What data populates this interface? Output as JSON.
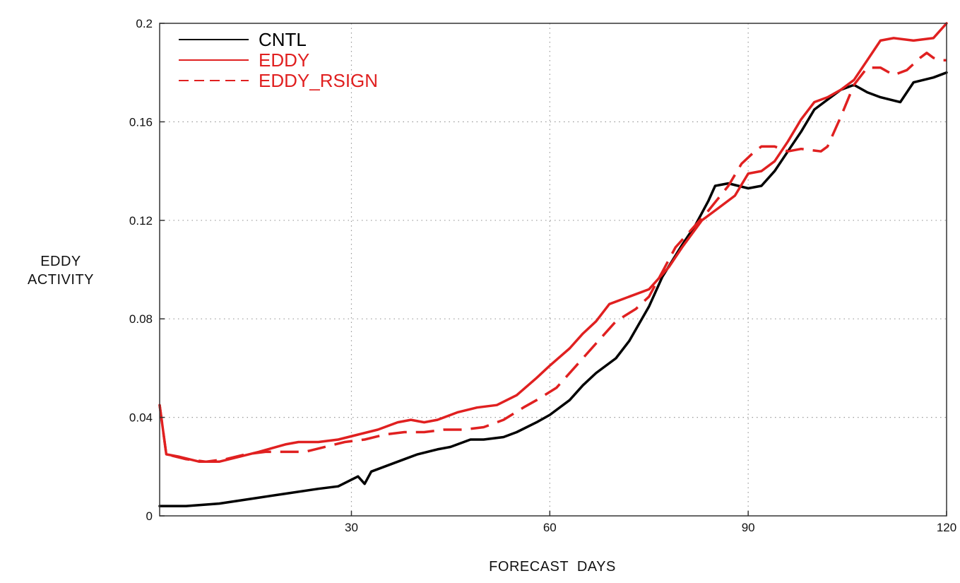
{
  "chart_data": {
    "type": "line",
    "xlabel": "FORECAST  DAYS",
    "ylabel": [
      "EDDY",
      "ACTIVITY"
    ],
    "xlim": [
      1,
      120
    ],
    "ylim": [
      0,
      0.2
    ],
    "xticks": [
      30,
      60,
      90,
      120
    ],
    "xtick_labels": [
      "30",
      "60",
      "90",
      "120"
    ],
    "yticks": [
      0,
      0.04,
      0.08,
      0.12,
      0.16,
      0.2
    ],
    "ytick_labels": [
      "0",
      "0.04",
      "0.08",
      "0.12",
      "0.16",
      "0.2"
    ],
    "grid": true,
    "legend_position": "top-left",
    "series": [
      {
        "name": "CNTL",
        "color": "#000000",
        "style": "solid",
        "points": [
          [
            1,
            0.004
          ],
          [
            5,
            0.004
          ],
          [
            10,
            0.005
          ],
          [
            15,
            0.007
          ],
          [
            20,
            0.009
          ],
          [
            25,
            0.011
          ],
          [
            28,
            0.012
          ],
          [
            31,
            0.016
          ],
          [
            32,
            0.013
          ],
          [
            33,
            0.018
          ],
          [
            35,
            0.02
          ],
          [
            38,
            0.023
          ],
          [
            40,
            0.025
          ],
          [
            43,
            0.027
          ],
          [
            45,
            0.028
          ],
          [
            48,
            0.031
          ],
          [
            50,
            0.031
          ],
          [
            53,
            0.032
          ],
          [
            55,
            0.034
          ],
          [
            58,
            0.038
          ],
          [
            60,
            0.041
          ],
          [
            63,
            0.047
          ],
          [
            65,
            0.053
          ],
          [
            67,
            0.058
          ],
          [
            70,
            0.064
          ],
          [
            72,
            0.071
          ],
          [
            75,
            0.085
          ],
          [
            77,
            0.097
          ],
          [
            80,
            0.11
          ],
          [
            82,
            0.118
          ],
          [
            84,
            0.128
          ],
          [
            85,
            0.134
          ],
          [
            87,
            0.135
          ],
          [
            90,
            0.133
          ],
          [
            92,
            0.134
          ],
          [
            94,
            0.14
          ],
          [
            96,
            0.148
          ],
          [
            98,
            0.156
          ],
          [
            100,
            0.165
          ],
          [
            102,
            0.169
          ],
          [
            104,
            0.173
          ],
          [
            106,
            0.175
          ],
          [
            108,
            0.172
          ],
          [
            110,
            0.17
          ],
          [
            113,
            0.168
          ],
          [
            115,
            0.176
          ],
          [
            118,
            0.178
          ],
          [
            120,
            0.18
          ]
        ]
      },
      {
        "name": "EDDY",
        "color": "#e02020",
        "style": "solid",
        "points": [
          [
            1,
            0.045
          ],
          [
            2,
            0.025
          ],
          [
            4,
            0.024
          ],
          [
            7,
            0.022
          ],
          [
            10,
            0.022
          ],
          [
            13,
            0.024
          ],
          [
            16,
            0.026
          ],
          [
            20,
            0.029
          ],
          [
            22,
            0.03
          ],
          [
            25,
            0.03
          ],
          [
            28,
            0.031
          ],
          [
            31,
            0.033
          ],
          [
            34,
            0.035
          ],
          [
            37,
            0.038
          ],
          [
            39,
            0.039
          ],
          [
            41,
            0.038
          ],
          [
            43,
            0.039
          ],
          [
            46,
            0.042
          ],
          [
            49,
            0.044
          ],
          [
            52,
            0.045
          ],
          [
            55,
            0.049
          ],
          [
            58,
            0.056
          ],
          [
            60,
            0.061
          ],
          [
            63,
            0.068
          ],
          [
            65,
            0.074
          ],
          [
            67,
            0.079
          ],
          [
            69,
            0.086
          ],
          [
            72,
            0.089
          ],
          [
            75,
            0.092
          ],
          [
            78,
            0.101
          ],
          [
            80,
            0.109
          ],
          [
            83,
            0.12
          ],
          [
            85,
            0.124
          ],
          [
            88,
            0.13
          ],
          [
            90,
            0.139
          ],
          [
            92,
            0.14
          ],
          [
            94,
            0.144
          ],
          [
            96,
            0.152
          ],
          [
            98,
            0.161
          ],
          [
            100,
            0.168
          ],
          [
            102,
            0.17
          ],
          [
            104,
            0.173
          ],
          [
            106,
            0.177
          ],
          [
            108,
            0.185
          ],
          [
            110,
            0.193
          ],
          [
            112,
            0.194
          ],
          [
            115,
            0.193
          ],
          [
            118,
            0.194
          ],
          [
            120,
            0.2
          ]
        ]
      },
      {
        "name": "EDDY_RSIGN",
        "color": "#e02020",
        "style": "dashed",
        "points": [
          [
            1,
            0.045
          ],
          [
            2,
            0.025
          ],
          [
            5,
            0.023
          ],
          [
            8,
            0.022
          ],
          [
            11,
            0.023
          ],
          [
            14,
            0.025
          ],
          [
            17,
            0.026
          ],
          [
            20,
            0.026
          ],
          [
            23,
            0.026
          ],
          [
            26,
            0.028
          ],
          [
            29,
            0.03
          ],
          [
            32,
            0.031
          ],
          [
            35,
            0.033
          ],
          [
            38,
            0.034
          ],
          [
            41,
            0.034
          ],
          [
            44,
            0.035
          ],
          [
            47,
            0.035
          ],
          [
            50,
            0.036
          ],
          [
            53,
            0.039
          ],
          [
            56,
            0.044
          ],
          [
            58,
            0.047
          ],
          [
            61,
            0.052
          ],
          [
            64,
            0.061
          ],
          [
            67,
            0.07
          ],
          [
            70,
            0.079
          ],
          [
            73,
            0.084
          ],
          [
            75,
            0.089
          ],
          [
            77,
            0.099
          ],
          [
            79,
            0.109
          ],
          [
            82,
            0.118
          ],
          [
            84,
            0.124
          ],
          [
            87,
            0.134
          ],
          [
            89,
            0.143
          ],
          [
            91,
            0.148
          ],
          [
            92,
            0.15
          ],
          [
            94,
            0.15
          ],
          [
            96,
            0.148
          ],
          [
            98,
            0.149
          ],
          [
            101,
            0.148
          ],
          [
            102,
            0.15
          ],
          [
            104,
            0.162
          ],
          [
            106,
            0.175
          ],
          [
            108,
            0.182
          ],
          [
            110,
            0.182
          ],
          [
            112,
            0.179
          ],
          [
            114,
            0.181
          ],
          [
            116,
            0.186
          ],
          [
            117,
            0.188
          ],
          [
            118,
            0.186
          ],
          [
            119,
            0.185
          ],
          [
            120,
            0.185
          ]
        ]
      }
    ]
  }
}
